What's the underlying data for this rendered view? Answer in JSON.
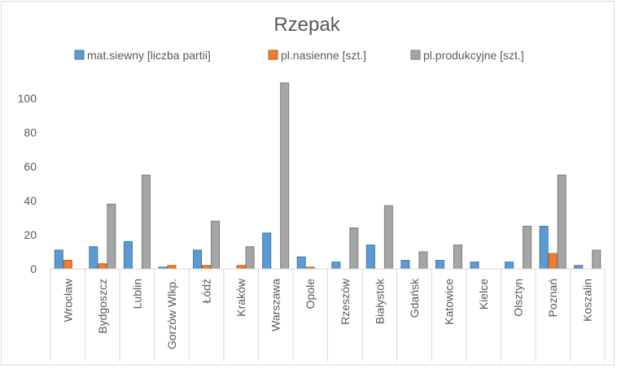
{
  "chart_data": {
    "type": "bar",
    "title": "Rzepak",
    "xlabel": "",
    "ylabel": "",
    "ylim": [
      0,
      110
    ],
    "yticks": [
      0,
      20,
      40,
      60,
      80,
      100
    ],
    "grid": false,
    "legend_position": "top",
    "categories": [
      "Wrocław",
      "Bydgoszcz",
      "Lublin",
      "Gorzów Wlkp.",
      "Łódź",
      "Kraków",
      "Warszawa",
      "Opole",
      "Rzeszów",
      "Białystok",
      "Gdańsk",
      "Katowice",
      "Kielce",
      "Olsztyn",
      "Poznań",
      "Koszalin"
    ],
    "series": [
      {
        "name": "mat.siewny [liczba partii]",
        "color": "#5b9bd5",
        "values": [
          11,
          13,
          16,
          1,
          11,
          0,
          21,
          7,
          4,
          14,
          5,
          5,
          4,
          4,
          25,
          2
        ]
      },
      {
        "name": "pl.nasienne [szt.]",
        "color": "#ed7d31",
        "values": [
          5,
          3,
          0,
          2,
          2,
          2,
          0,
          1,
          0,
          0,
          0,
          0,
          0,
          0,
          9,
          0
        ]
      },
      {
        "name": "pl.produkcyjne [szt.]",
        "color": "#a5a5a5",
        "values": [
          0,
          38,
          55,
          0,
          28,
          13,
          109,
          0,
          24,
          37,
          10,
          14,
          0,
          25,
          55,
          11
        ]
      }
    ]
  }
}
